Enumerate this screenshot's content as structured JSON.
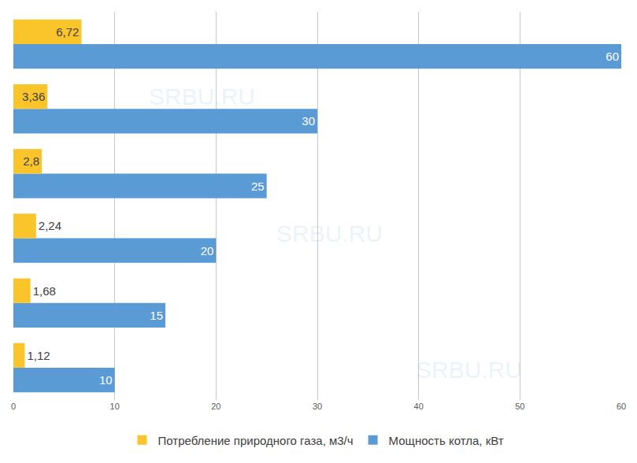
{
  "chart_data": {
    "type": "bar",
    "orientation": "horizontal",
    "categories": [
      null,
      null,
      null,
      null,
      null,
      null
    ],
    "series": [
      {
        "name": "Потребление природного газа, м3/ч",
        "color": "#F9C52A",
        "values": [
          1.12,
          1.68,
          2.24,
          2.8,
          3.36,
          6.72
        ],
        "value_labels": [
          "1,12",
          "1,68",
          "2,24",
          "2,8",
          "3,36",
          "6,72"
        ]
      },
      {
        "name": "Мощность котла, кВт",
        "color": "#5B9BD5",
        "values": [
          10,
          15,
          20,
          25,
          30,
          60
        ]
      }
    ],
    "xlim": [
      0,
      60
    ],
    "xticks": [
      0,
      10,
      20,
      30,
      40,
      50,
      60
    ],
    "grid": true,
    "data_labels": true,
    "tick_labels": "x",
    "legend": "bottom",
    "annotations": [
      "SRBU.RU",
      "SRBU.RU",
      "SRBU.RU"
    ]
  }
}
